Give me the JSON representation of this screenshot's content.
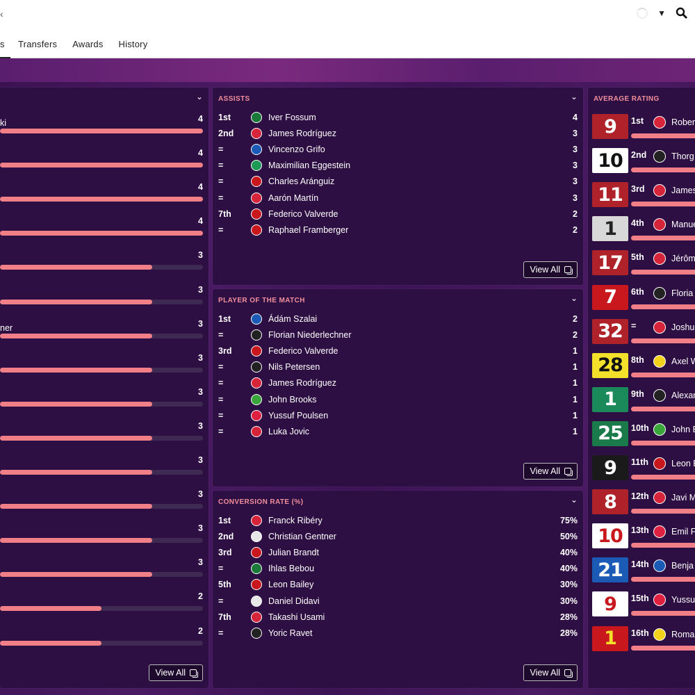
{
  "header": {
    "corner_mark": "‹",
    "tabs": [
      {
        "label": "s"
      },
      {
        "label": "Transfers"
      },
      {
        "label": "Awards"
      },
      {
        "label": "History"
      }
    ]
  },
  "colors": {
    "accent": "#f08f9b",
    "bar": "#f07f88",
    "panel": "#2e0f43",
    "background": "#3a1450"
  },
  "goals": {
    "max_value": 4,
    "rows": [
      {
        "name": "ki",
        "value": "4",
        "num": 4
      },
      {
        "name": "",
        "value": "4",
        "num": 4
      },
      {
        "name": "",
        "value": "4",
        "num": 4
      },
      {
        "name": "",
        "value": "4",
        "num": 4
      },
      {
        "name": "",
        "value": "3",
        "num": 3
      },
      {
        "name": "",
        "value": "3",
        "num": 3
      },
      {
        "name": "ner",
        "value": "3",
        "num": 3
      },
      {
        "name": "",
        "value": "3",
        "num": 3
      },
      {
        "name": "",
        "value": "3",
        "num": 3
      },
      {
        "name": "",
        "value": "3",
        "num": 3
      },
      {
        "name": "",
        "value": "3",
        "num": 3
      },
      {
        "name": "",
        "value": "3",
        "num": 3
      },
      {
        "name": "",
        "value": "3",
        "num": 3
      },
      {
        "name": "",
        "value": "3",
        "num": 3
      },
      {
        "name": "",
        "value": "2",
        "num": 2
      },
      {
        "name": "",
        "value": "2",
        "num": 2
      }
    ],
    "view_all": "View All"
  },
  "assists": {
    "title": "ASSISTS",
    "rows": [
      {
        "pos": "1st",
        "name": "Iver Fossum",
        "value": "4",
        "badge": "#1a7a3a"
      },
      {
        "pos": "2nd",
        "name": "James Rodríguez",
        "value": "3",
        "badge": "#d6243a"
      },
      {
        "pos": "=",
        "name": "Vincenzo Grifo",
        "value": "3",
        "badge": "#1b5bb5"
      },
      {
        "pos": "=",
        "name": "Maximilian Eggestein",
        "value": "3",
        "badge": "#1d9a55"
      },
      {
        "pos": "=",
        "name": "Charles Aránguiz",
        "value": "3",
        "badge": "#c8181e"
      },
      {
        "pos": "=",
        "name": "Aarón Martín",
        "value": "3",
        "badge": "#d6243a"
      },
      {
        "pos": "7th",
        "name": "Federico Valverde",
        "value": "2",
        "badge": "#c8181e"
      },
      {
        "pos": "=",
        "name": "Raphael Framberger",
        "value": "2",
        "badge": "#c8181e"
      }
    ],
    "view_all": "View All"
  },
  "potm": {
    "title": "PLAYER OF THE MATCH",
    "rows": [
      {
        "pos": "1st",
        "name": "Ádám Szalai",
        "value": "2",
        "badge": "#1b5bb5"
      },
      {
        "pos": "=",
        "name": "Florian Niederlechner",
        "value": "2",
        "badge": "#222222"
      },
      {
        "pos": "3rd",
        "name": "Federico Valverde",
        "value": "1",
        "badge": "#c8181e"
      },
      {
        "pos": "=",
        "name": "Nils Petersen",
        "value": "1",
        "badge": "#222222"
      },
      {
        "pos": "=",
        "name": "James Rodríguez",
        "value": "1",
        "badge": "#d6243a"
      },
      {
        "pos": "=",
        "name": "John Brooks",
        "value": "1",
        "badge": "#3aa53a"
      },
      {
        "pos": "=",
        "name": "Yussuf Poulsen",
        "value": "1",
        "badge": "#e02040"
      },
      {
        "pos": "=",
        "name": "Luka Jovic",
        "value": "1",
        "badge": "#d6243a"
      }
    ],
    "view_all": "View All"
  },
  "conversion": {
    "title": "CONVERSION RATE (%)",
    "rows": [
      {
        "pos": "1st",
        "name": "Franck Ribéry",
        "value": "75%",
        "badge": "#d6243a"
      },
      {
        "pos": "2nd",
        "name": "Christian Gentner",
        "value": "50%",
        "badge": "#e8e8e8"
      },
      {
        "pos": "3rd",
        "name": "Julian Brandt",
        "value": "40%",
        "badge": "#c8181e"
      },
      {
        "pos": "=",
        "name": "Ihlas Bebou",
        "value": "40%",
        "badge": "#1a7a3a"
      },
      {
        "pos": "5th",
        "name": "Leon Bailey",
        "value": "30%",
        "badge": "#c8181e"
      },
      {
        "pos": "=",
        "name": "Daniel Didavi",
        "value": "30%",
        "badge": "#e8e8e8"
      },
      {
        "pos": "7th",
        "name": "Takashi Usami",
        "value": "28%",
        "badge": "#d6243a"
      },
      {
        "pos": "=",
        "name": "Yoric Ravet",
        "value": "28%",
        "badge": "#222222"
      }
    ],
    "view_all": "View All"
  },
  "avg_rating": {
    "title": "AVERAGE RATING",
    "rows": [
      {
        "number": "9",
        "pos": "1st",
        "name": "Rober",
        "shirt_bg": "#b0222a",
        "shirt_fg": "#ffffff",
        "badge": "#d6243a"
      },
      {
        "number": "10",
        "pos": "2nd",
        "name": "Thorg",
        "shirt_bg": "#ffffff",
        "shirt_fg": "#111111",
        "badge": "#222222"
      },
      {
        "number": "11",
        "pos": "3rd",
        "name": "James",
        "shirt_bg": "#b0222a",
        "shirt_fg": "#ffffff",
        "badge": "#d6243a"
      },
      {
        "number": "1",
        "pos": "4th",
        "name": "Manue",
        "shirt_bg": "#d8d8d8",
        "shirt_fg": "#222222",
        "badge": "#d6243a"
      },
      {
        "number": "17",
        "pos": "5th",
        "name": "Jérôm",
        "shirt_bg": "#b0222a",
        "shirt_fg": "#ffffff",
        "badge": "#d6243a"
      },
      {
        "number": "7",
        "pos": "6th",
        "name": "Floria",
        "shirt_bg": "#c8181e",
        "shirt_fg": "#ffffff",
        "badge": "#222222"
      },
      {
        "number": "32",
        "pos": "=",
        "name": "Joshu",
        "shirt_bg": "#b0222a",
        "shirt_fg": "#ffffff",
        "badge": "#d6243a"
      },
      {
        "number": "28",
        "pos": "8th",
        "name": "Axel W",
        "shirt_bg": "#f2e02a",
        "shirt_fg": "#111111",
        "badge": "#f2d21a"
      },
      {
        "number": "1",
        "pos": "9th",
        "name": "Alexar",
        "shirt_bg": "#1a8a5a",
        "shirt_fg": "#ffffff",
        "badge": "#222222"
      },
      {
        "number": "25",
        "pos": "10th",
        "name": "John B",
        "shirt_bg": "#1a7a4a",
        "shirt_fg": "#ffffff",
        "badge": "#3aa53a"
      },
      {
        "number": "9",
        "pos": "11th",
        "name": "Leon B",
        "shirt_bg": "#1a1a1a",
        "shirt_fg": "#ffffff",
        "badge": "#c8181e"
      },
      {
        "number": "8",
        "pos": "12th",
        "name": "Javi M",
        "shirt_bg": "#b0222a",
        "shirt_fg": "#ffffff",
        "badge": "#d6243a"
      },
      {
        "number": "10",
        "pos": "13th",
        "name": "Emil F",
        "shirt_bg": "#ffffff",
        "shirt_fg": "#c8181e",
        "badge": "#e02040"
      },
      {
        "number": "21",
        "pos": "14th",
        "name": "Benja",
        "shirt_bg": "#1b5bb5",
        "shirt_fg": "#ffffff",
        "badge": "#1b5bb5"
      },
      {
        "number": "9",
        "pos": "15th",
        "name": "Yussu",
        "shirt_bg": "#ffffff",
        "shirt_fg": "#c8181e",
        "badge": "#e02040"
      },
      {
        "number": "1",
        "pos": "16th",
        "name": "Roma",
        "shirt_bg": "#c8181e",
        "shirt_fg": "#f2e02a",
        "badge": "#f2d21a"
      }
    ]
  }
}
